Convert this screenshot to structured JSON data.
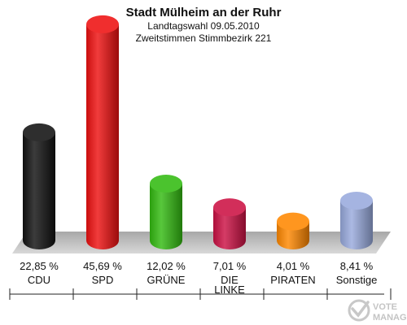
{
  "chart_data": {
    "type": "bar",
    "title": "Stadt Mülheim an der Ruhr",
    "subtitle_lines": [
      "Landtagswahl 09.05.2010",
      "Zweitstimmen Stimmbezirk 221"
    ],
    "categories": [
      "CDU",
      "SPD",
      "GRÜNE",
      "DIE LINKE",
      "PIRATEN",
      "Sonstige"
    ],
    "category_lines": [
      [
        "CDU"
      ],
      [
        "SPD"
      ],
      [
        "GRÜNE"
      ],
      [
        "DIE",
        "LINKE"
      ],
      [
        "PIRATEN"
      ],
      [
        "Sonstige"
      ]
    ],
    "values": [
      22.85,
      45.69,
      12.02,
      7.01,
      4.01,
      8.41
    ],
    "value_labels": [
      "22,85 %",
      "45,69 %",
      "12,02 %",
      "7,01 %",
      "4,01 %",
      "8,41 %"
    ],
    "colors": [
      "#111111",
      "#ee1111",
      "#33bb11",
      "#cc1144",
      "#ff8800",
      "#99aadd"
    ],
    "ylim": [
      0,
      50
    ],
    "grid": false,
    "legend": "none"
  },
  "logo": {
    "line1": "VOTE",
    "line2": "MANAGER"
  }
}
